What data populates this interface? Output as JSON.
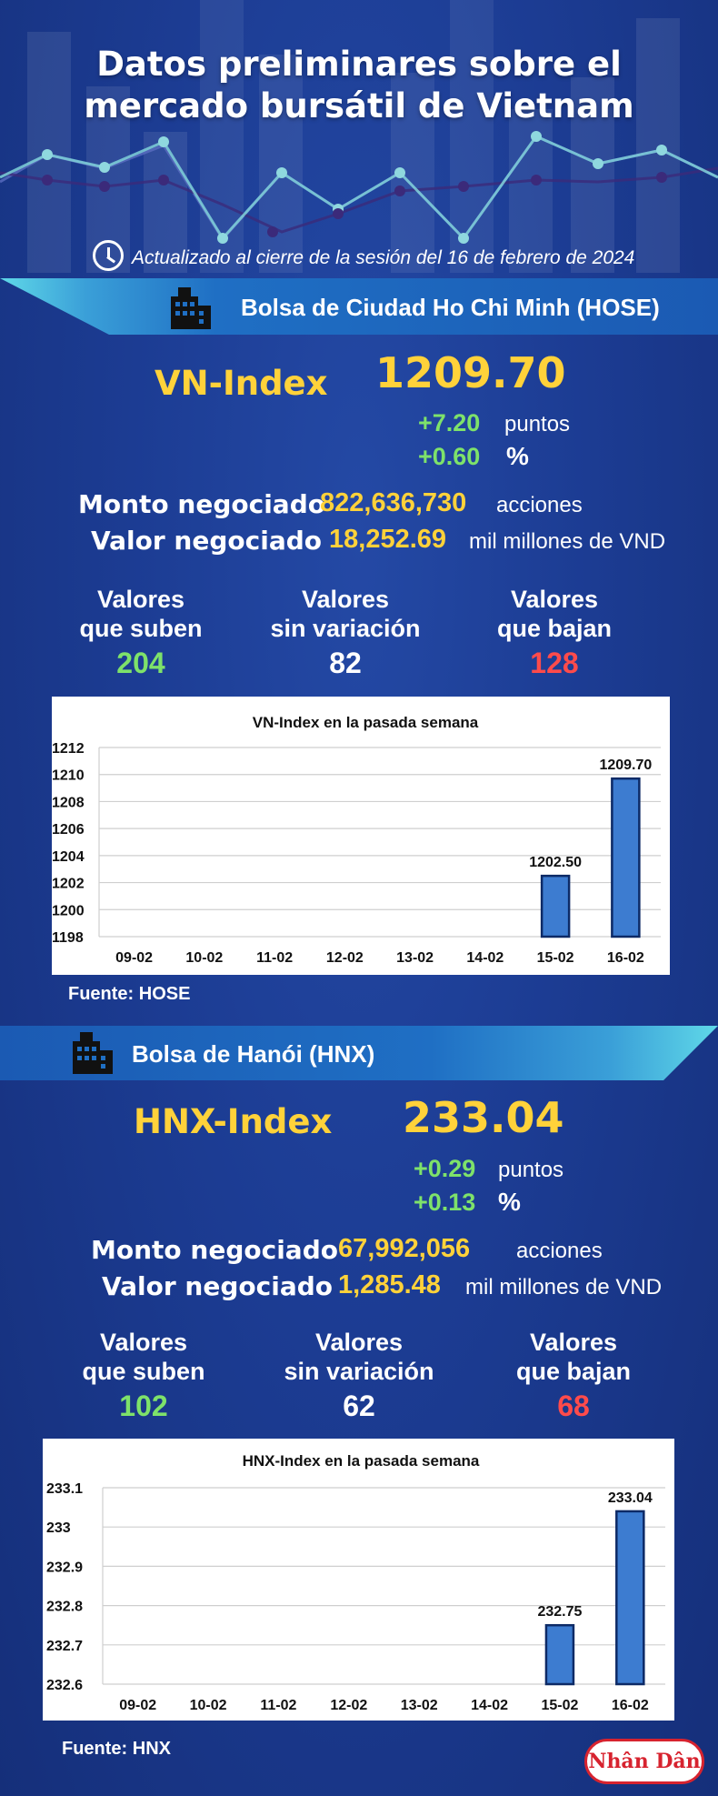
{
  "header": {
    "title_line1": "Datos preliminares sobre el",
    "title_line2": "mercado bursátil de Vietnam",
    "updated": "Actualizado al cierre de la sesión del 16 de febrero de 2024",
    "clock_icon": "clock-icon"
  },
  "hose": {
    "banner": "Bolsa de Ciudad Ho Chi Minh (HOSE)",
    "index_name": "VN-Index",
    "index_value": "1209.70",
    "change_points": "+7.20",
    "points_unit": "puntos",
    "change_percent": "+0.60",
    "percent_unit": "%",
    "volume_label": "Monto negociado",
    "volume_value": "822,636,730",
    "volume_unit": "acciones",
    "value_label": "Valor negociado",
    "value_value": "18,252.69",
    "value_unit": "mil millones de VND",
    "up_label1": "Valores",
    "up_label2": "que suben",
    "up_count": "204",
    "flat_label1": "Valores",
    "flat_label2": "sin variación",
    "flat_count": "82",
    "down_label1": "Valores",
    "down_label2": "que bajan",
    "down_count": "128",
    "source": "Fuente: HOSE"
  },
  "hnx": {
    "banner": "Bolsa de Hanói (HNX)",
    "index_name": "HNX-Index",
    "index_value": "233.04",
    "change_points": "+0.29",
    "points_unit": "puntos",
    "change_percent": "+0.13",
    "percent_unit": "%",
    "volume_label": "Monto negociado",
    "volume_value": "67,992,056",
    "volume_unit": "acciones",
    "value_label": "Valor negociado",
    "value_value": "1,285.48",
    "value_unit": "mil millones de VND",
    "up_label1": "Valores",
    "up_label2": "que suben",
    "up_count": "102",
    "flat_label1": "Valores",
    "flat_label2": "sin variación",
    "flat_count": "62",
    "down_label1": "Valores",
    "down_label2": "que bajan",
    "down_count": "68",
    "source": "Fuente:  HNX"
  },
  "logo_text": "Nhân Dân",
  "colors": {
    "yellow": "#ffd23a",
    "green": "#7ee26a",
    "red": "#ff4b4b",
    "bar": "#3d7cd0"
  },
  "chart_data": [
    {
      "type": "bar",
      "title": "VN-Index en la pasada semana",
      "categories": [
        "09-02",
        "10-02",
        "11-02",
        "12-02",
        "13-02",
        "14-02",
        "15-02",
        "16-02"
      ],
      "values": [
        null,
        null,
        null,
        null,
        null,
        null,
        1202.5,
        1209.7
      ],
      "data_labels": [
        "",
        "",
        "",
        "",
        "",
        "",
        "1202.50",
        "1209.70"
      ],
      "yticks": [
        "1212",
        "1210",
        "1208",
        "1206",
        "1204",
        "1202",
        "1200",
        "1198"
      ],
      "ylim": [
        1198,
        1212
      ]
    },
    {
      "type": "bar",
      "title": "HNX-Index en la pasada semana",
      "categories": [
        "09-02",
        "10-02",
        "11-02",
        "12-02",
        "13-02",
        "14-02",
        "15-02",
        "16-02"
      ],
      "values": [
        null,
        null,
        null,
        null,
        null,
        null,
        232.75,
        233.04
      ],
      "data_labels": [
        "",
        "",
        "",
        "",
        "",
        "",
        "232.75",
        "233.04"
      ],
      "yticks": [
        "233.1",
        "233",
        "232.9",
        "232.8",
        "232.7",
        "232.6"
      ],
      "ylim": [
        232.6,
        233.1
      ]
    }
  ]
}
